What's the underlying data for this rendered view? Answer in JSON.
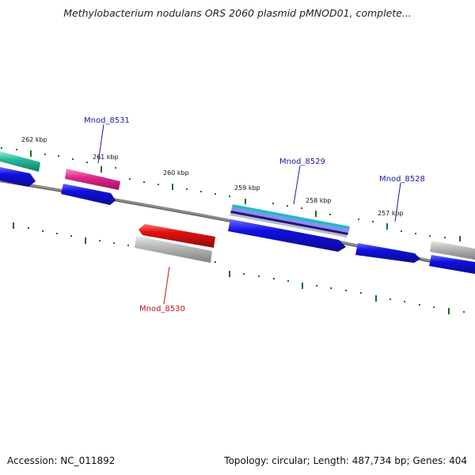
{
  "title": "Methylobacterium nodulans ORS 2060 plasmid pMNOD01, complete...",
  "footer": {
    "accession": "Accession: NC_011892",
    "summary": "Topology: circular; Length: 487,734 bp; Genes: 404"
  },
  "ticks": [
    "262 kbp",
    "261 kbp",
    "260 kbp",
    "259 kbp",
    "258 kbp",
    "257 kbp"
  ],
  "gene_labels": [
    {
      "name": "Mnod_8531",
      "color": "#1a1aa6"
    },
    {
      "name": "Mnod_8529",
      "color": "#1a1aa6"
    },
    {
      "name": "Mnod_8528",
      "color": "#1a1aa6"
    },
    {
      "name": "Mnod_8530",
      "color": "#cc1111"
    }
  ],
  "colors": {
    "backbone": "#777777",
    "tick": "#1d6b1d",
    "cds_blue": "#1010e0",
    "cds_red": "#e01010",
    "gene_gray": "#b8b8b8",
    "gene_pink": "#e0288a",
    "gene_teal": "#28b898",
    "gene_cyan": "#28b8c0"
  }
}
